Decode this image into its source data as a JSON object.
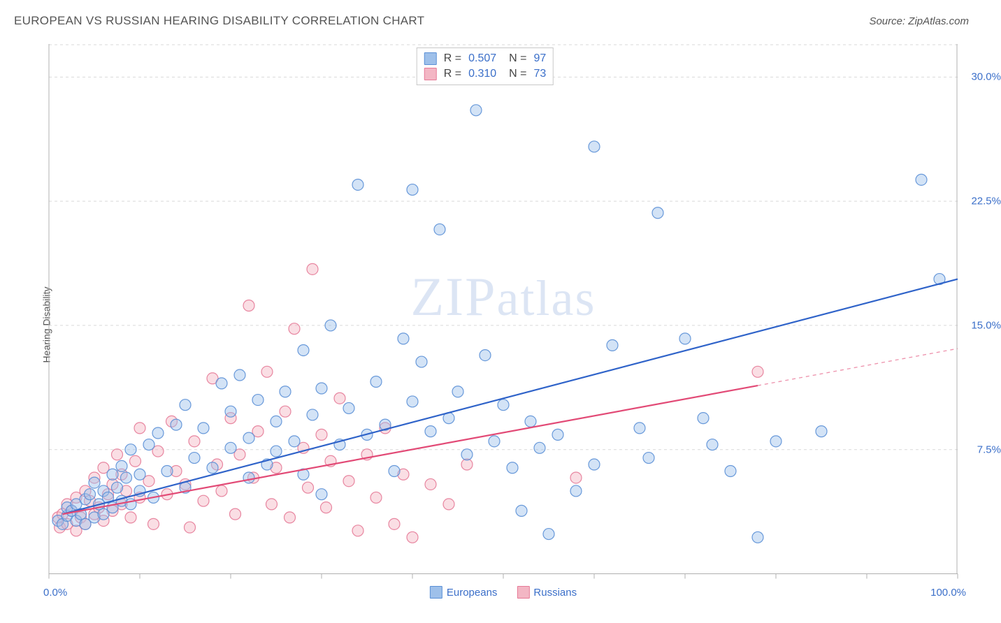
{
  "header": {
    "title": "EUROPEAN VS RUSSIAN HEARING DISABILITY CORRELATION CHART",
    "source": "Source: ZipAtlas.com"
  },
  "ylabel": "Hearing Disability",
  "watermark": "ZIPatlas",
  "chart": {
    "type": "scatter",
    "background_color": "#ffffff",
    "grid_color": "#d9d9d9",
    "axis_color": "#b0b0b0",
    "text_color": "#555555",
    "value_color": "#3b6fc9",
    "xlim": [
      0,
      100
    ],
    "ylim": [
      0,
      32
    ],
    "x_tick_step": 10,
    "x_tick_labels": [
      {
        "v": 0,
        "label": "0.0%"
      },
      {
        "v": 100,
        "label": "100.0%"
      }
    ],
    "y_ticks": [
      {
        "v": 7.5,
        "label": "7.5%"
      },
      {
        "v": 15.0,
        "label": "15.0%"
      },
      {
        "v": 22.5,
        "label": "22.5%"
      },
      {
        "v": 30.0,
        "label": "30.0%"
      }
    ],
    "top_y_ratio": 0.985,
    "marker_radius": 8,
    "marker_fill_opacity": 0.45,
    "marker_stroke_opacity": 0.9,
    "line_width": 2.2,
    "series": [
      {
        "name": "Europeans",
        "marker_fill": "#9ec0ea",
        "marker_stroke": "#5a8fd6",
        "line_color": "#2f63c9",
        "R": "0.507",
        "N": "97",
        "trend": {
          "x1": 1.5,
          "y1": 3.6,
          "x2": 100,
          "y2": 17.8,
          "solid_until_x": 100
        },
        "points": [
          [
            1,
            3.2
          ],
          [
            1.5,
            3.0
          ],
          [
            2,
            3.5
          ],
          [
            2,
            4.0
          ],
          [
            2.5,
            3.8
          ],
          [
            3,
            3.2
          ],
          [
            3,
            4.2
          ],
          [
            3.5,
            3.6
          ],
          [
            4,
            4.5
          ],
          [
            4,
            3.0
          ],
          [
            4.5,
            4.8
          ],
          [
            5,
            3.4
          ],
          [
            5,
            5.5
          ],
          [
            5.5,
            4.2
          ],
          [
            6,
            5.0
          ],
          [
            6,
            3.6
          ],
          [
            6.5,
            4.6
          ],
          [
            7,
            6.0
          ],
          [
            7,
            4.0
          ],
          [
            7.5,
            5.2
          ],
          [
            8,
            6.5
          ],
          [
            8,
            4.4
          ],
          [
            8.5,
            5.8
          ],
          [
            9,
            7.5
          ],
          [
            9,
            4.2
          ],
          [
            10,
            6.0
          ],
          [
            10,
            5.0
          ],
          [
            11,
            7.8
          ],
          [
            11.5,
            4.6
          ],
          [
            12,
            8.5
          ],
          [
            13,
            6.2
          ],
          [
            14,
            9.0
          ],
          [
            15,
            5.2
          ],
          [
            15,
            10.2
          ],
          [
            16,
            7.0
          ],
          [
            17,
            8.8
          ],
          [
            18,
            6.4
          ],
          [
            19,
            11.5
          ],
          [
            20,
            7.6
          ],
          [
            20,
            9.8
          ],
          [
            21,
            12.0
          ],
          [
            22,
            5.8
          ],
          [
            22,
            8.2
          ],
          [
            23,
            10.5
          ],
          [
            24,
            6.6
          ],
          [
            25,
            9.2
          ],
          [
            25,
            7.4
          ],
          [
            26,
            11.0
          ],
          [
            27,
            8.0
          ],
          [
            28,
            13.5
          ],
          [
            28,
            6.0
          ],
          [
            29,
            9.6
          ],
          [
            30,
            11.2
          ],
          [
            30,
            4.8
          ],
          [
            31,
            15.0
          ],
          [
            32,
            7.8
          ],
          [
            33,
            10.0
          ],
          [
            34,
            23.5
          ],
          [
            35,
            8.4
          ],
          [
            36,
            11.6
          ],
          [
            37,
            9.0
          ],
          [
            38,
            6.2
          ],
          [
            39,
            14.2
          ],
          [
            40,
            10.4
          ],
          [
            40,
            23.2
          ],
          [
            41,
            12.8
          ],
          [
            42,
            8.6
          ],
          [
            43,
            20.8
          ],
          [
            44,
            9.4
          ],
          [
            45,
            11.0
          ],
          [
            46,
            7.2
          ],
          [
            47,
            28.0
          ],
          [
            48,
            13.2
          ],
          [
            49,
            8.0
          ],
          [
            50,
            10.2
          ],
          [
            51,
            6.4
          ],
          [
            52,
            3.8
          ],
          [
            53,
            9.2
          ],
          [
            54,
            7.6
          ],
          [
            55,
            2.4
          ],
          [
            56,
            8.4
          ],
          [
            58,
            5.0
          ],
          [
            60,
            6.6
          ],
          [
            60,
            25.8
          ],
          [
            62,
            13.8
          ],
          [
            65,
            8.8
          ],
          [
            66,
            7.0
          ],
          [
            67,
            21.8
          ],
          [
            70,
            14.2
          ],
          [
            72,
            9.4
          ],
          [
            73,
            7.8
          ],
          [
            75,
            6.2
          ],
          [
            78,
            2.2
          ],
          [
            80,
            8.0
          ],
          [
            85,
            8.6
          ],
          [
            96,
            23.8
          ],
          [
            98,
            17.8
          ]
        ]
      },
      {
        "name": "Russians",
        "marker_fill": "#f3b6c4",
        "marker_stroke": "#e67a97",
        "line_color": "#e24a76",
        "R": "0.310",
        "N": "73",
        "trend": {
          "x1": 1.5,
          "y1": 3.6,
          "x2": 100,
          "y2": 13.6,
          "solid_until_x": 78
        },
        "points": [
          [
            1,
            3.4
          ],
          [
            1.2,
            2.8
          ],
          [
            1.5,
            3.6
          ],
          [
            2,
            3.0
          ],
          [
            2,
            4.2
          ],
          [
            2.5,
            3.8
          ],
          [
            3,
            4.6
          ],
          [
            3,
            2.6
          ],
          [
            3.5,
            3.4
          ],
          [
            4,
            5.0
          ],
          [
            4,
            3.0
          ],
          [
            4.5,
            4.4
          ],
          [
            5,
            3.6
          ],
          [
            5,
            5.8
          ],
          [
            5.5,
            4.0
          ],
          [
            6,
            6.4
          ],
          [
            6,
            3.2
          ],
          [
            6.5,
            4.8
          ],
          [
            7,
            5.4
          ],
          [
            7,
            3.8
          ],
          [
            7.5,
            7.2
          ],
          [
            8,
            4.2
          ],
          [
            8,
            6.0
          ],
          [
            8.5,
            5.0
          ],
          [
            9,
            3.4
          ],
          [
            9.5,
            6.8
          ],
          [
            10,
            8.8
          ],
          [
            10,
            4.6
          ],
          [
            11,
            5.6
          ],
          [
            11.5,
            3.0
          ],
          [
            12,
            7.4
          ],
          [
            13,
            4.8
          ],
          [
            13.5,
            9.2
          ],
          [
            14,
            6.2
          ],
          [
            15,
            5.4
          ],
          [
            15.5,
            2.8
          ],
          [
            16,
            8.0
          ],
          [
            17,
            4.4
          ],
          [
            18,
            11.8
          ],
          [
            18.5,
            6.6
          ],
          [
            19,
            5.0
          ],
          [
            20,
            9.4
          ],
          [
            20.5,
            3.6
          ],
          [
            21,
            7.2
          ],
          [
            22,
            16.2
          ],
          [
            22.5,
            5.8
          ],
          [
            23,
            8.6
          ],
          [
            24,
            12.2
          ],
          [
            24.5,
            4.2
          ],
          [
            25,
            6.4
          ],
          [
            26,
            9.8
          ],
          [
            26.5,
            3.4
          ],
          [
            27,
            14.8
          ],
          [
            28,
            7.6
          ],
          [
            28.5,
            5.2
          ],
          [
            29,
            18.4
          ],
          [
            30,
            8.4
          ],
          [
            30.5,
            4.0
          ],
          [
            31,
            6.8
          ],
          [
            32,
            10.6
          ],
          [
            33,
            5.6
          ],
          [
            34,
            2.6
          ],
          [
            35,
            7.2
          ],
          [
            36,
            4.6
          ],
          [
            37,
            8.8
          ],
          [
            38,
            3.0
          ],
          [
            39,
            6.0
          ],
          [
            40,
            2.2
          ],
          [
            42,
            5.4
          ],
          [
            44,
            4.2
          ],
          [
            46,
            6.6
          ],
          [
            58,
            5.8
          ],
          [
            78,
            12.2
          ]
        ]
      }
    ]
  },
  "legend": {
    "bottom": [
      {
        "swatch_fill": "#9ec0ea",
        "swatch_stroke": "#5a8fd6",
        "label": "Europeans"
      },
      {
        "swatch_fill": "#f3b6c4",
        "swatch_stroke": "#e67a97",
        "label": "Russians"
      }
    ],
    "top": [
      {
        "swatch_fill": "#9ec0ea",
        "swatch_stroke": "#5a8fd6",
        "r_label": "R =",
        "r_val": "0.507",
        "n_label": "N =",
        "n_val": "97"
      },
      {
        "swatch_fill": "#f3b6c4",
        "swatch_stroke": "#e67a97",
        "r_label": "R =",
        "r_val": "0.310",
        "n_label": "N =",
        "n_val": "73"
      }
    ]
  }
}
